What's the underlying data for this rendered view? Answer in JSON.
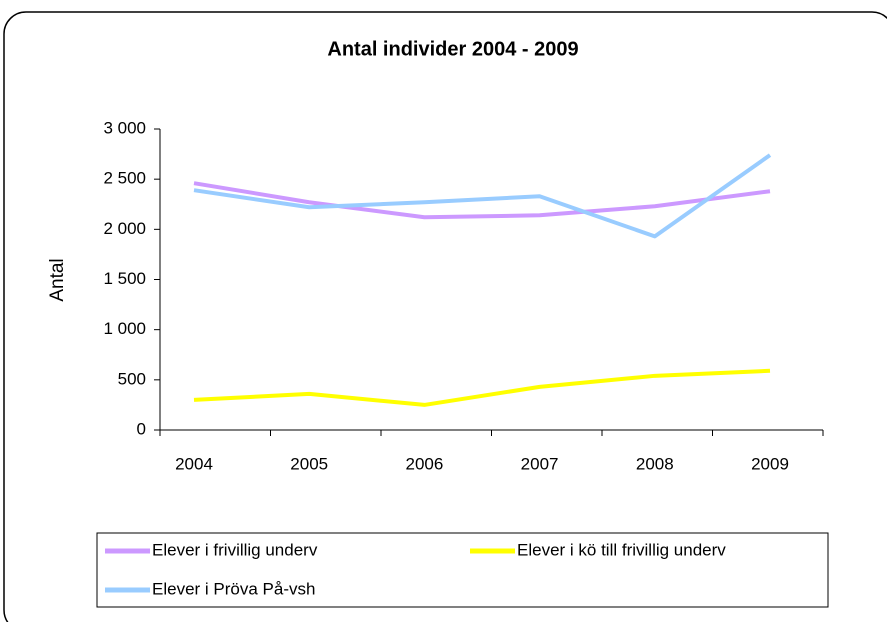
{
  "chart_data": {
    "type": "line",
    "title": "Antal individer 2004 - 2009",
    "y_label": "Antal",
    "categories": [
      "2004",
      "2005",
      "2006",
      "2007",
      "2008",
      "2009"
    ],
    "series": [
      {
        "name": "Elever i frivillig underv",
        "color": "#cc99ff",
        "values": [
          2460,
          2270,
          2120,
          2140,
          2230,
          2380
        ]
      },
      {
        "name": "Elever i kö till frivillig underv",
        "color": "#ffff00",
        "values": [
          300,
          360,
          250,
          430,
          540,
          590
        ]
      },
      {
        "name": "Elever i Pröva På-vsh",
        "color": "#99ccff",
        "values": [
          2390,
          2220,
          2270,
          2330,
          1930,
          2740
        ]
      }
    ],
    "ylim": [
      0,
      3000
    ],
    "yticks": [
      0,
      500,
      {
        "value": 1000,
        "label": "1 000"
      },
      {
        "value": 1500,
        "label": "1 500"
      },
      {
        "value": 2000,
        "label": "2 000"
      },
      {
        "value": 2500,
        "label": "2 500"
      },
      {
        "value": 3000,
        "label": "3 000"
      }
    ],
    "grid": false
  }
}
